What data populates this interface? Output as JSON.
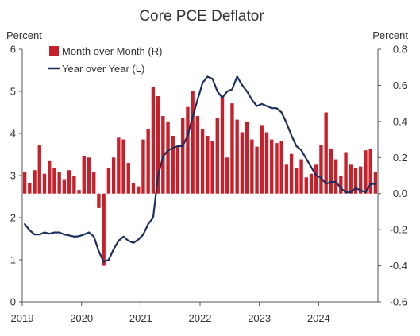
{
  "chart_data": {
    "type": "bar+line",
    "title": "Core PCE Deflator",
    "left_axis": {
      "unit": "Percent",
      "ylim": [
        0,
        6
      ],
      "ticks": [
        "0",
        "1",
        "2",
        "3",
        "4",
        "5",
        "6"
      ]
    },
    "right_axis": {
      "unit": "Percent",
      "ylim": [
        -0.6,
        0.8
      ],
      "ticks": [
        "-0.6",
        "-0.4",
        "-0.2",
        "0.0",
        "0.2",
        "0.4",
        "0.6",
        "0.8"
      ]
    },
    "x_axis": {
      "ticks": [
        "2019",
        "2020",
        "2021",
        "2022",
        "2023",
        "2024"
      ],
      "range": [
        "2019-01",
        "2024-12"
      ]
    },
    "legend": {
      "position": "top-left"
    },
    "colors": {
      "bars": "#c8202a",
      "line": "#1b2f5e",
      "axis": "#555555"
    },
    "series": [
      {
        "name": "Month over Month (R)",
        "kind": "bar",
        "axis": "right",
        "start": "2019-01",
        "values": [
          0.12,
          0.06,
          0.13,
          0.27,
          0.11,
          0.18,
          0.14,
          0.12,
          0.08,
          0.13,
          0.1,
          0.02,
          0.21,
          0.2,
          0.12,
          -0.08,
          -0.4,
          0.14,
          0.2,
          0.31,
          0.3,
          0.17,
          0.06,
          0.04,
          0.3,
          0.36,
          0.59,
          0.54,
          0.43,
          0.4,
          0.32,
          0.26,
          0.42,
          0.48,
          0.57,
          0.43,
          0.36,
          0.32,
          0.29,
          0.42,
          0.54,
          0.2,
          0.5,
          0.41,
          0.34,
          0.4,
          0.3,
          0.26,
          0.38,
          0.34,
          0.3,
          0.28,
          0.29,
          0.16,
          0.22,
          0.14,
          0.19,
          0.09,
          0.11,
          0.16,
          0.27,
          0.45,
          0.25,
          0.19,
          0.1,
          0.23,
          0.16,
          0.14,
          0.15,
          0.24,
          0.25,
          0.12
        ]
      },
      {
        "name": "Year over Year (L)",
        "kind": "line",
        "axis": "left",
        "start": "2019-01",
        "values": [
          1.85,
          1.7,
          1.6,
          1.6,
          1.65,
          1.62,
          1.65,
          1.65,
          1.6,
          1.58,
          1.55,
          1.56,
          1.6,
          1.65,
          1.55,
          1.2,
          0.95,
          1.0,
          1.25,
          1.45,
          1.55,
          1.45,
          1.4,
          1.48,
          1.6,
          1.85,
          2.0,
          3.0,
          3.45,
          3.6,
          3.65,
          3.7,
          3.7,
          3.95,
          4.4,
          4.8,
          5.2,
          5.35,
          5.3,
          5.0,
          4.85,
          5.0,
          5.05,
          5.35,
          5.15,
          5.0,
          4.8,
          4.65,
          4.7,
          4.65,
          4.6,
          4.6,
          4.5,
          4.25,
          3.95,
          3.7,
          3.6,
          3.4,
          3.2,
          3.0,
          2.95,
          2.8,
          2.85,
          2.85,
          2.7,
          2.6,
          2.6,
          2.7,
          2.65,
          2.6,
          2.8,
          2.8
        ]
      }
    ]
  }
}
